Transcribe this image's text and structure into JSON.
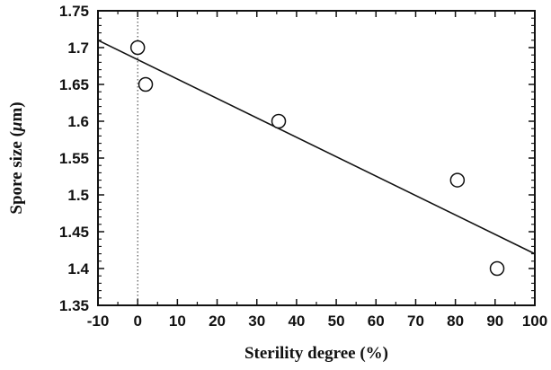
{
  "chart_data": {
    "type": "scatter",
    "title": "",
    "xlabel": "Sterility degree (%)",
    "ylabel_prefix": "Spore size (",
    "ylabel_mu": "μ",
    "ylabel_suffix": "m)",
    "xlim": [
      -10,
      100
    ],
    "ylim": [
      1.35,
      1.75
    ],
    "x_ticks": [
      -10,
      0,
      10,
      20,
      30,
      40,
      50,
      60,
      70,
      80,
      90,
      100
    ],
    "x_tick_labels": [
      "-10",
      "0",
      "10",
      "20",
      "30",
      "40",
      "50",
      "60",
      "70",
      "80",
      "90",
      "100"
    ],
    "y_ticks": [
      1.35,
      1.4,
      1.45,
      1.5,
      1.55,
      1.6,
      1.65,
      1.7,
      1.75
    ],
    "y_tick_labels": [
      "1.35",
      "1.4",
      "1.45",
      "1.5",
      "1.55",
      "1.6",
      "1.65",
      "1.7",
      "1.75"
    ],
    "points": [
      {
        "x": 0,
        "y": 1.7
      },
      {
        "x": 2,
        "y": 1.65
      },
      {
        "x": 35.5,
        "y": 1.6
      },
      {
        "x": 80.5,
        "y": 1.52
      },
      {
        "x": 90.5,
        "y": 1.4
      }
    ],
    "fit_line": {
      "x": [
        -10,
        100
      ],
      "y": [
        1.71,
        1.42
      ]
    },
    "reference_line_x": 0,
    "grid": false,
    "legend": "none"
  }
}
